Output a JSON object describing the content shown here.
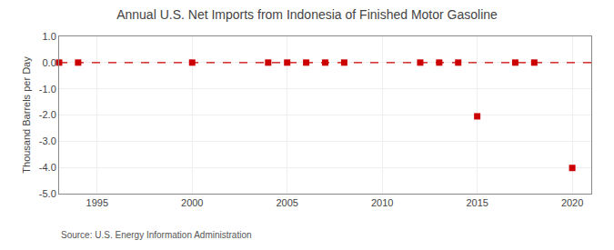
{
  "chart_data": {
    "type": "scatter",
    "title": "Annual U.S. Net Imports from Indonesia of Finished Motor Gasoline",
    "ylabel": "Thousand Barrels per Day",
    "annotation": "Source: U.S. Energy Information Administration",
    "series": [
      {
        "type": "scatter",
        "color": "#cc0000",
        "marker": "square",
        "x": [
          1993,
          1994,
          2000,
          2004,
          2005,
          2006,
          2007,
          2008,
          2012,
          2013,
          2014,
          2015,
          2017,
          2018,
          2020
        ],
        "values": [
          0,
          0,
          0,
          0,
          0,
          0,
          0,
          0,
          0,
          0,
          0,
          -2.05,
          0,
          0,
          -4.02
        ]
      },
      {
        "type": "line",
        "color": "#cc0000",
        "line_style": "dashed",
        "x": [
          1993,
          2021
        ],
        "values": [
          0,
          0
        ]
      }
    ],
    "xlim": [
      1993.0,
      2021.0
    ],
    "ylim": [
      -5.0,
      1.0
    ],
    "xticks": [
      1995,
      2000,
      2005,
      2010,
      2015,
      2020
    ],
    "yticks": [
      {
        "value": 1.0,
        "label": "1.0"
      },
      {
        "value": 0.0,
        "label": "0.0"
      },
      {
        "value": -1.0,
        "label": "-1.0"
      },
      {
        "value": -2.0,
        "label": "-2.0"
      },
      {
        "value": -3.0,
        "label": "-3.0"
      },
      {
        "value": -4.0,
        "label": "-4.0"
      },
      {
        "value": -5.0,
        "label": "-5.0"
      }
    ],
    "grid": true
  }
}
